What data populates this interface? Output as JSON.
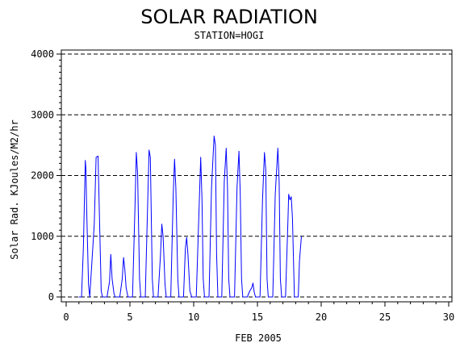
{
  "chart_data": {
    "type": "line",
    "title": "SOLAR RADIATION",
    "subtitle": "STATION=HOGI",
    "xlabel": "FEB 2005",
    "ylabel": "Solar Rad. KJoules/M2/hr",
    "xlim": [
      0,
      30
    ],
    "ylim": [
      0,
      4000
    ],
    "x_ticks": [
      "0",
      "5",
      "10",
      "15",
      "20",
      "25",
      "30"
    ],
    "y_ticks": [
      "0",
      "1000",
      "2000",
      "3000",
      "4000"
    ],
    "grid": "horizontal dashed at y ticks",
    "legend": "none",
    "colors": {
      "series": "#0000ff"
    },
    "series": [
      {
        "x": [
          1.0,
          1.2,
          1.35,
          1.5,
          1.55,
          1.6,
          1.75,
          1.85,
          2.2,
          2.35,
          2.5,
          2.6,
          2.75,
          2.85,
          3.2,
          3.4,
          3.5,
          3.6,
          3.75,
          3.85,
          4.2,
          4.4,
          4.5,
          4.6,
          4.7,
          4.85,
          5.2,
          5.4,
          5.5,
          5.6,
          5.75,
          5.85,
          6.2,
          6.4,
          6.5,
          6.6,
          6.75,
          6.85,
          7.2,
          7.4,
          7.5,
          7.6,
          7.75,
          7.85,
          8.2,
          8.4,
          8.5,
          8.6,
          8.75,
          8.85,
          9.2,
          9.35,
          9.45,
          9.55,
          9.7,
          9.85,
          10.2,
          10.4,
          10.55,
          10.65,
          10.75,
          10.85,
          11.2,
          11.4,
          11.6,
          11.7,
          11.8,
          11.9,
          12.2,
          12.4,
          12.55,
          12.65,
          12.75,
          12.85,
          13.2,
          13.4,
          13.55,
          13.65,
          13.75,
          13.85,
          14.2,
          14.4,
          14.55,
          14.65,
          14.75,
          14.85,
          15.2,
          15.4,
          15.55,
          15.65,
          15.75,
          15.85,
          16.2,
          16.4,
          16.6,
          16.7,
          16.8,
          16.9,
          17.2,
          17.4,
          17.45,
          17.55,
          17.65,
          17.75,
          17.9,
          18.2,
          18.3,
          18.45
        ],
        "y": [
          0,
          0,
          800,
          2250,
          2100,
          1500,
          200,
          0,
          1200,
          2300,
          2320,
          1400,
          100,
          0,
          0,
          250,
          700,
          300,
          50,
          0,
          0,
          300,
          650,
          450,
          150,
          0,
          0,
          1500,
          2380,
          2050,
          300,
          0,
          0,
          1600,
          2420,
          2300,
          300,
          0,
          0,
          700,
          1200,
          1000,
          200,
          0,
          0,
          1700,
          2270,
          1800,
          300,
          0,
          0,
          800,
          980,
          700,
          100,
          0,
          0,
          1300,
          2300,
          1600,
          300,
          0,
          0,
          1800,
          2650,
          2500,
          700,
          0,
          0,
          1900,
          2450,
          1800,
          300,
          0,
          0,
          1800,
          2400,
          1700,
          300,
          0,
          0,
          100,
          150,
          230,
          80,
          0,
          0,
          1600,
          2380,
          2100,
          300,
          0,
          0,
          1700,
          2450,
          1900,
          300,
          0,
          0,
          1300,
          1690,
          1600,
          1650,
          1300,
          0,
          0,
          600,
          1000
        ]
      }
    ]
  }
}
